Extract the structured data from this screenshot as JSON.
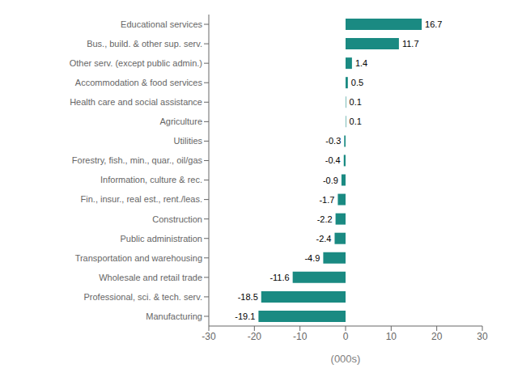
{
  "chart_data": {
    "type": "bar",
    "orientation": "horizontal",
    "categories": [
      "Manufacturing",
      "Professional, sci. & tech. serv.",
      "Wholesale and retail trade",
      "Transportation and warehousing",
      "Public administration",
      "Construction",
      "Fin., insur., real est., rent./leas.",
      "Information, culture & rec.",
      "Forestry, fish., min., quar., oil/gas",
      "Utilities",
      "Agriculture",
      "Health care and social assistance",
      "Accommodation & food services",
      "Other serv. (except public admin.)",
      "Bus., build. & other sup. serv.",
      "Educational services"
    ],
    "values": [
      -19.1,
      -18.5,
      -11.6,
      -4.9,
      -2.4,
      -2.2,
      -1.7,
      -0.9,
      -0.4,
      -0.3,
      0.1,
      0.1,
      0.5,
      1.4,
      11.7,
      16.7
    ],
    "color": "#1a8a82",
    "xlabel": "(000s)",
    "xlim": [
      -30,
      30
    ],
    "xticks": [
      -30,
      -20,
      -10,
      0,
      10,
      20,
      30
    ],
    "data_labels": true
  }
}
